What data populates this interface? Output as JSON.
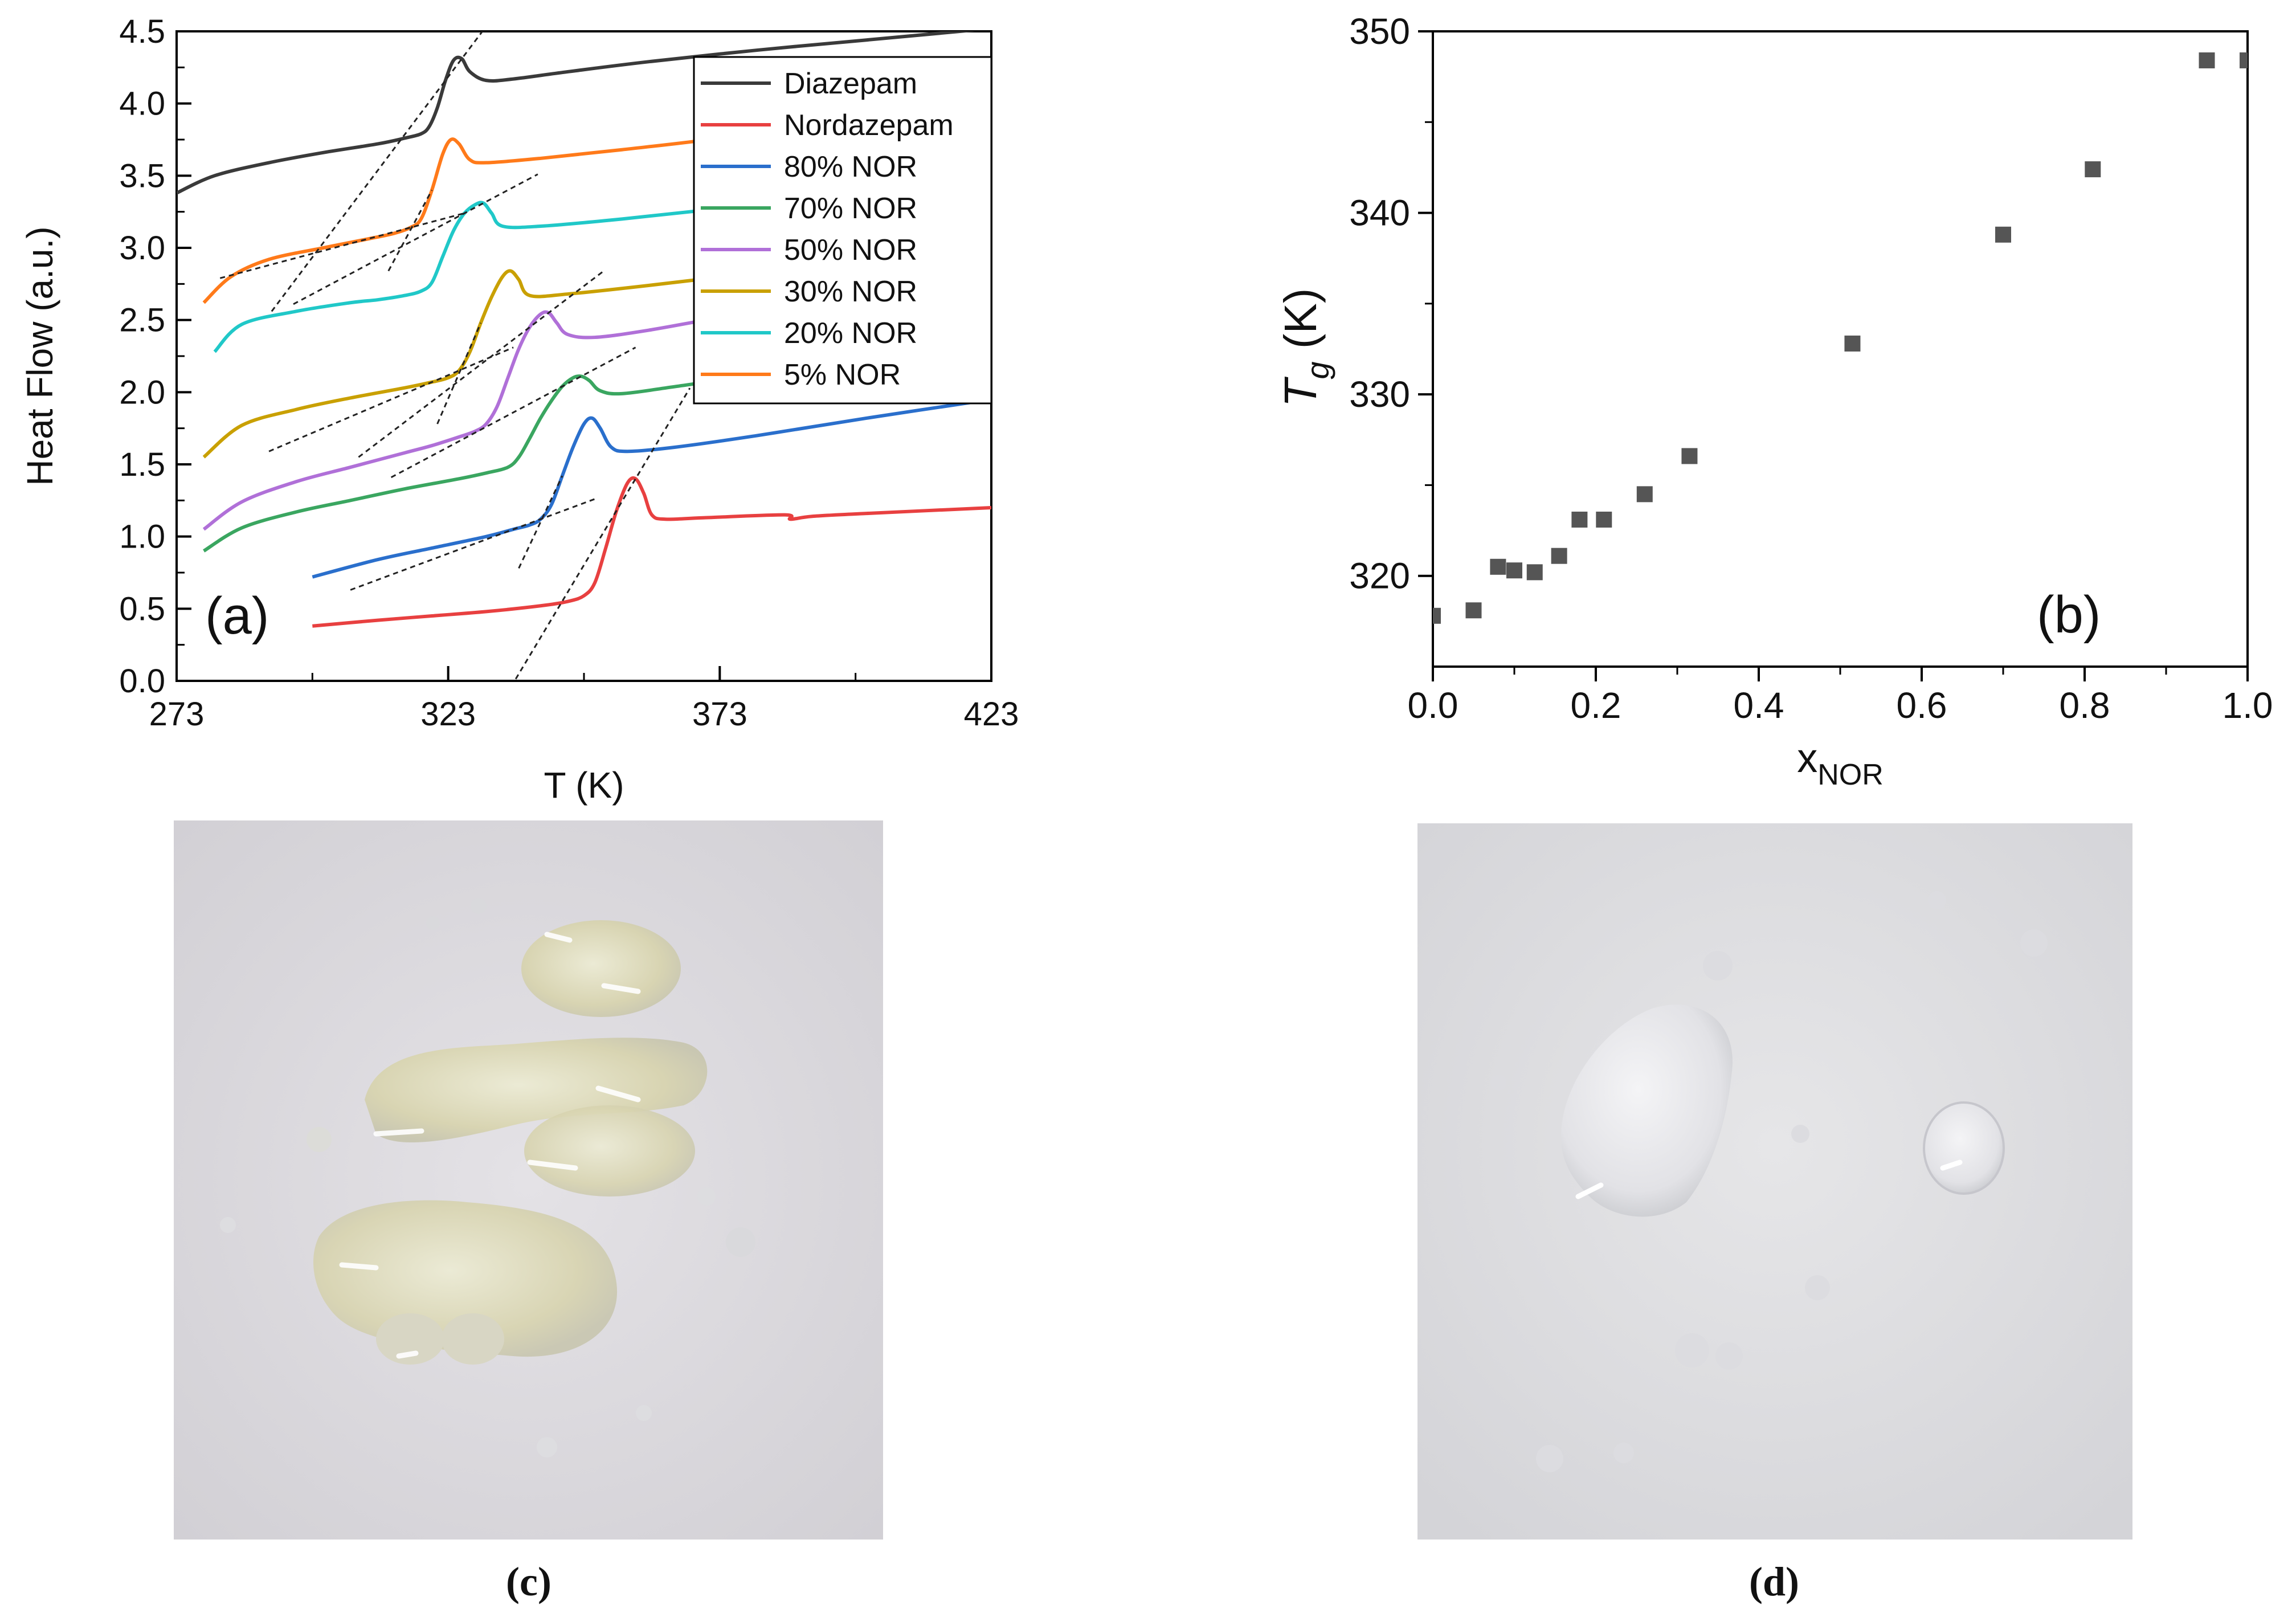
{
  "figure": {
    "panels": {
      "a": "(a)",
      "b": "(b)",
      "c": "(c)",
      "d": "(d)"
    },
    "captions": {
      "c": "(c)",
      "d": "(d)"
    }
  },
  "chart_data": [
    {
      "panel": "a",
      "type": "line",
      "xlabel": "T (K)",
      "ylabel": "Heat Flow (a.u.)",
      "xlim": [
        273,
        423
      ],
      "ylim": [
        0.0,
        4.5
      ],
      "xticks": [
        273,
        323,
        373,
        423
      ],
      "yticks": [
        0.0,
        0.5,
        1.0,
        1.5,
        2.0,
        2.5,
        3.0,
        3.5,
        4.0,
        4.5
      ],
      "ytick_labels": [
        "0.0",
        "0.5",
        "1.0",
        "1.5",
        "2.0",
        "2.5",
        "3.0",
        "3.5",
        "4.0",
        "4.5"
      ],
      "legend_position": "top-right",
      "annotation": "(a)",
      "series": [
        {
          "name": "Diazepam",
          "color": "#3a3a3a",
          "x": [
            273,
            280,
            290,
            300,
            310,
            315,
            318,
            319.5,
            321,
            322.5,
            324,
            325.5,
            327,
            330,
            335,
            345,
            360,
            380,
            400,
            423
          ],
          "y": [
            3.38,
            3.5,
            3.59,
            3.66,
            3.72,
            3.76,
            3.79,
            3.84,
            3.97,
            4.16,
            4.3,
            4.31,
            4.22,
            4.16,
            4.17,
            4.22,
            4.29,
            4.37,
            4.44,
            4.52
          ]
        },
        {
          "name": "Nordazepam",
          "color": "#e84040",
          "x": [
            298,
            310,
            320,
            330,
            340,
            345,
            348,
            350,
            352,
            354,
            356,
            357.5,
            359,
            360.5,
            363,
            370,
            385,
            386,
            390,
            400,
            423
          ],
          "y": [
            0.38,
            0.42,
            0.45,
            0.48,
            0.52,
            0.55,
            0.59,
            0.68,
            0.92,
            1.18,
            1.37,
            1.4,
            1.3,
            1.15,
            1.12,
            1.13,
            1.15,
            1.12,
            1.14,
            1.16,
            1.2
          ]
        },
        {
          "name": "80% NOR",
          "color": "#2a6fcc",
          "x": [
            298,
            310,
            320,
            330,
            335,
            338,
            340,
            342,
            344,
            346,
            348,
            349.5,
            351,
            353,
            356,
            365,
            380,
            400,
            423
          ],
          "y": [
            0.72,
            0.84,
            0.92,
            1.0,
            1.05,
            1.08,
            1.12,
            1.22,
            1.42,
            1.62,
            1.78,
            1.82,
            1.75,
            1.62,
            1.59,
            1.62,
            1.7,
            1.82,
            1.95
          ]
        },
        {
          "name": "70% NOR",
          "color": "#3aa660",
          "x": [
            278,
            285,
            295,
            305,
            315,
            325,
            330,
            334,
            336,
            338,
            340,
            342,
            344,
            346,
            347.5,
            349,
            351,
            355,
            365,
            380,
            400,
            423
          ],
          "y": [
            0.9,
            1.06,
            1.17,
            1.25,
            1.33,
            1.4,
            1.44,
            1.48,
            1.55,
            1.68,
            1.82,
            1.94,
            2.04,
            2.1,
            2.11,
            2.08,
            2.01,
            1.99,
            2.04,
            2.12,
            2.21,
            2.3
          ]
        },
        {
          "name": "50% NOR",
          "color": "#b070d8",
          "x": [
            278,
            285,
            295,
            305,
            315,
            320,
            325,
            328,
            330,
            332,
            334,
            336,
            338,
            340,
            341.5,
            343,
            345,
            350,
            360,
            375,
            400,
            423
          ],
          "y": [
            1.05,
            1.24,
            1.38,
            1.48,
            1.58,
            1.63,
            1.69,
            1.73,
            1.78,
            1.9,
            2.1,
            2.3,
            2.45,
            2.54,
            2.55,
            2.48,
            2.4,
            2.38,
            2.43,
            2.53,
            2.68,
            2.81
          ]
        },
        {
          "name": "30% NOR",
          "color": "#c9a000",
          "x": [
            278,
            285,
            295,
            305,
            315,
            320,
            323,
            325,
            327,
            329,
            331,
            333,
            334.5,
            336,
            338,
            345,
            360,
            380,
            400,
            423
          ],
          "y": [
            1.55,
            1.77,
            1.88,
            1.96,
            2.03,
            2.07,
            2.1,
            2.15,
            2.28,
            2.48,
            2.66,
            2.8,
            2.84,
            2.78,
            2.67,
            2.68,
            2.74,
            2.83,
            2.93,
            3.04
          ]
        },
        {
          "name": "20% NOR",
          "color": "#20c8c8",
          "x": [
            280,
            285,
            295,
            305,
            310,
            315,
            318,
            320,
            322,
            324,
            326,
            328,
            329.5,
            331,
            333,
            340,
            355,
            375,
            400,
            423
          ],
          "y": [
            2.28,
            2.47,
            2.56,
            2.62,
            2.64,
            2.67,
            2.7,
            2.76,
            2.94,
            3.12,
            3.24,
            3.3,
            3.31,
            3.24,
            3.15,
            3.15,
            3.2,
            3.28,
            3.37,
            3.45
          ]
        },
        {
          "name": "5% NOR",
          "color": "#ff7a1a",
          "x": [
            278,
            283,
            290,
            300,
            308,
            313,
            316,
            318,
            320,
            322,
            323.5,
            325,
            327,
            330,
            340,
            355,
            375,
            400,
            423
          ],
          "y": [
            2.62,
            2.8,
            2.92,
            3.0,
            3.06,
            3.1,
            3.14,
            3.2,
            3.4,
            3.65,
            3.75,
            3.72,
            3.61,
            3.59,
            3.62,
            3.68,
            3.77,
            3.92,
            4.05
          ]
        }
      ]
    },
    {
      "panel": "b",
      "type": "scatter",
      "xlabel": "xNOR",
      "xlabel_main": "x",
      "xlabel_sub": "NOR",
      "ylabel": "Tg (K)",
      "ylabel_main": "T",
      "ylabel_sub": "g",
      "ylabel_unit": " (K)",
      "xlim": [
        0.0,
        1.0
      ],
      "ylim": [
        315,
        350
      ],
      "xticks": [
        0.0,
        0.2,
        0.4,
        0.6,
        0.8,
        1.0
      ],
      "xtick_labels": [
        "0.0",
        "0.2",
        "0.4",
        "0.6",
        "0.8",
        "1.0"
      ],
      "yticks": [
        320,
        330,
        340,
        350
      ],
      "ytick_labels": [
        "320",
        "330",
        "340",
        "350"
      ],
      "annotation": "(b)",
      "marker_color": "#555555",
      "x": [
        0.0,
        0.05,
        0.08,
        0.1,
        0.125,
        0.155,
        0.18,
        0.21,
        0.26,
        0.315,
        0.515,
        0.7,
        0.81,
        0.95,
        1.0
      ],
      "y": [
        317.8,
        318.1,
        320.5,
        320.3,
        320.2,
        321.1,
        323.1,
        323.1,
        324.5,
        326.6,
        332.8,
        338.8,
        342.4,
        348.4,
        348.4
      ]
    }
  ],
  "photos": {
    "c": {
      "description_icon": "sample-c-photo-icon"
    },
    "d": {
      "description_icon": "sample-d-photo-icon"
    }
  }
}
